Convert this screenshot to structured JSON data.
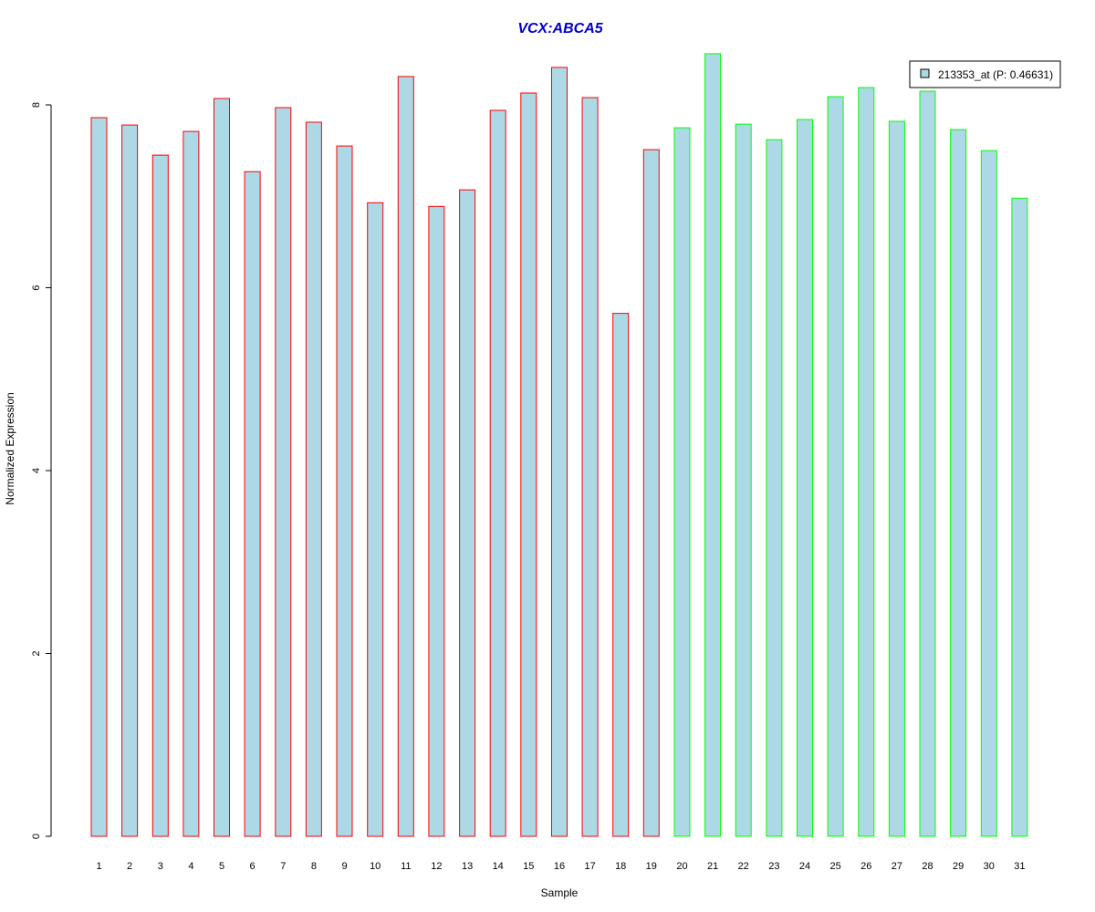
{
  "chart_data": {
    "type": "bar",
    "title": "VCX:ABCA5",
    "xlabel": "Sample",
    "ylabel": "Normalized Expression",
    "ylim": [
      0,
      8.6
    ],
    "y_ticks": [
      0,
      2,
      4,
      6,
      8
    ],
    "categories": [
      "1",
      "2",
      "3",
      "4",
      "5",
      "6",
      "7",
      "8",
      "9",
      "10",
      "11",
      "12",
      "13",
      "14",
      "15",
      "16",
      "17",
      "18",
      "19",
      "20",
      "21",
      "22",
      "23",
      "24",
      "25",
      "26",
      "27",
      "28",
      "29",
      "30",
      "31"
    ],
    "values": [
      7.86,
      7.78,
      7.45,
      7.71,
      8.07,
      7.27,
      7.97,
      7.81,
      7.55,
      6.93,
      8.31,
      6.89,
      7.07,
      7.94,
      8.13,
      8.41,
      8.08,
      5.72,
      7.51,
      7.75,
      8.56,
      7.79,
      7.62,
      7.84,
      8.09,
      8.19,
      7.82,
      8.15,
      7.73,
      7.5,
      6.98
    ],
    "group": [
      "A",
      "A",
      "A",
      "A",
      "A",
      "A",
      "A",
      "A",
      "A",
      "A",
      "A",
      "A",
      "A",
      "A",
      "A",
      "A",
      "A",
      "A",
      "A",
      "B",
      "B",
      "B",
      "B",
      "B",
      "B",
      "B",
      "B",
      "B",
      "B",
      "B",
      "B"
    ],
    "legend": {
      "label": "213353_at (P: 0.46631)",
      "position": "top-right"
    },
    "grid": false,
    "colors": {
      "title": "#0000cc",
      "bar_fill": "#add8e6",
      "border_group_A": "#ff0000",
      "border_group_B": "#00ff00",
      "axis": "#000000"
    }
  }
}
